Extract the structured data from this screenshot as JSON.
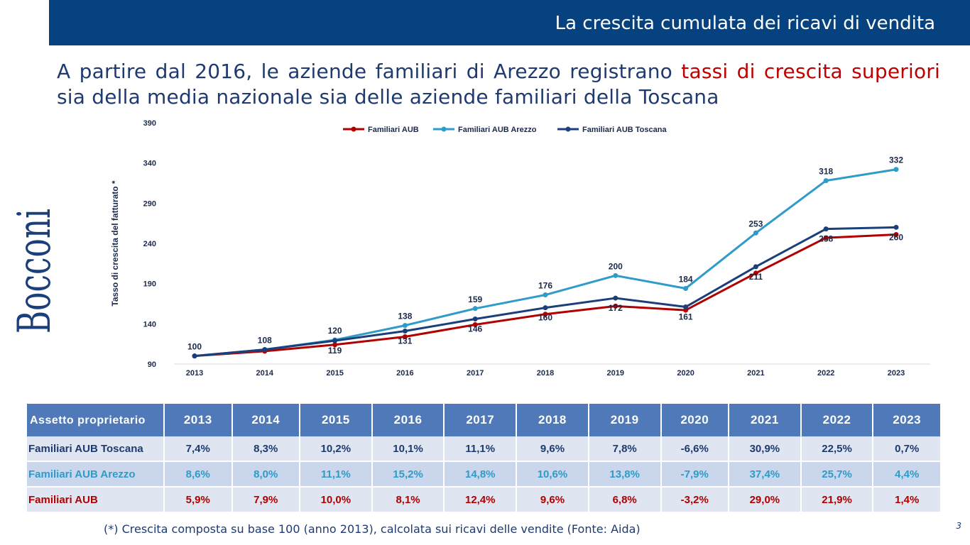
{
  "header": {
    "title": "La crescita cumulata dei ricavi di vendita"
  },
  "logo": {
    "text": "Bocconi"
  },
  "headline": {
    "part1": "A partire dal 2016, le aziende familiari di Arezzo registrano ",
    "highlight": "tassi di crescita superiori",
    "part2": " sia della media nazionale sia delle aziende familiari della Toscana"
  },
  "colors": {
    "accent_blue": "#05427f",
    "light_blue": "#2e9bc8",
    "red": "#b00000",
    "table_header": "#4f79b9"
  },
  "chart_data": {
    "type": "line",
    "ylabel": "Tasso di crescita del fatturato *",
    "xlabel": "",
    "x": [
      "2013",
      "2014",
      "2015",
      "2016",
      "2017",
      "2018",
      "2019",
      "2020",
      "2021",
      "2022",
      "2023"
    ],
    "ylim": [
      90,
      390
    ],
    "yticks": [
      90,
      140,
      190,
      240,
      290,
      340,
      390
    ],
    "legend_position": "top",
    "series": [
      {
        "name": "Familiari AUB",
        "color": "#b00000",
        "values": [
          100,
          106,
          114,
          124,
          139,
          152,
          162,
          157,
          203,
          247,
          251
        ]
      },
      {
        "name": "Familiari AUB Arezzo",
        "color": "#2e9bc8",
        "values": [
          100,
          108,
          120,
          138,
          159,
          176,
          200,
          184,
          253,
          318,
          332
        ]
      },
      {
        "name": "Familiari AUB Toscana",
        "color": "#1b3f7a",
        "values": [
          100,
          108,
          119,
          131,
          146,
          160,
          172,
          161,
          211,
          258,
          260
        ]
      }
    ],
    "data_labels": [
      {
        "x": "2013",
        "text": "100",
        "pos": "above",
        "y": 100
      },
      {
        "x": "2014",
        "text": "108",
        "pos": "above",
        "y": 108
      },
      {
        "x": "2015",
        "text": "120",
        "pos": "above",
        "y": 120
      },
      {
        "x": "2015",
        "text": "119",
        "pos": "below",
        "y": 119
      },
      {
        "x": "2016",
        "text": "138",
        "pos": "above",
        "y": 138
      },
      {
        "x": "2016",
        "text": "131",
        "pos": "below",
        "y": 131
      },
      {
        "x": "2017",
        "text": "159",
        "pos": "above",
        "y": 159
      },
      {
        "x": "2017",
        "text": "146",
        "pos": "below",
        "y": 146
      },
      {
        "x": "2018",
        "text": "176",
        "pos": "above",
        "y": 176
      },
      {
        "x": "2018",
        "text": "160",
        "pos": "below",
        "y": 160
      },
      {
        "x": "2019",
        "text": "200",
        "pos": "above",
        "y": 200
      },
      {
        "x": "2019",
        "text": "172",
        "pos": "below",
        "y": 172
      },
      {
        "x": "2020",
        "text": "184",
        "pos": "above",
        "y": 184
      },
      {
        "x": "2020",
        "text": "161",
        "pos": "below",
        "y": 161
      },
      {
        "x": "2021",
        "text": "253",
        "pos": "above",
        "y": 253
      },
      {
        "x": "2021",
        "text": "211",
        "pos": "below",
        "y": 211
      },
      {
        "x": "2022",
        "text": "318",
        "pos": "above",
        "y": 318
      },
      {
        "x": "2022",
        "text": "258",
        "pos": "below",
        "y": 258
      },
      {
        "x": "2023",
        "text": "332",
        "pos": "above",
        "y": 332
      },
      {
        "x": "2023",
        "text": "260",
        "pos": "below",
        "y": 260
      }
    ]
  },
  "table": {
    "header_label": "Assetto proprietario",
    "years": [
      "2013",
      "2014",
      "2015",
      "2016",
      "2017",
      "2018",
      "2019",
      "2020",
      "2021",
      "2022",
      "2023"
    ],
    "rows": [
      {
        "label": "Familiari AUB Toscana",
        "values": [
          "7,4%",
          "8,3%",
          "10,2%",
          "10,1%",
          "11,1%",
          "9,6%",
          "7,8%",
          "-6,6%",
          "30,9%",
          "22,5%",
          "0,7%"
        ]
      },
      {
        "label": "Familiari AUB Arezzo",
        "values": [
          "8,6%",
          "8,0%",
          "11,1%",
          "15,2%",
          "14,8%",
          "10,6%",
          "13,8%",
          "-7,9%",
          "37,4%",
          "25,7%",
          "4,4%"
        ]
      },
      {
        "label": "Familiari AUB",
        "values": [
          "5,9%",
          "7,9%",
          "10,0%",
          "8,1%",
          "12,4%",
          "9,6%",
          "6,8%",
          "-3,2%",
          "29,0%",
          "21,9%",
          "1,4%"
        ]
      }
    ]
  },
  "footnote": "(*) Crescita composta su base 100 (anno 2013), calcolata sui ricavi delle vendite (Fonte: Aida)",
  "page_number": "3"
}
